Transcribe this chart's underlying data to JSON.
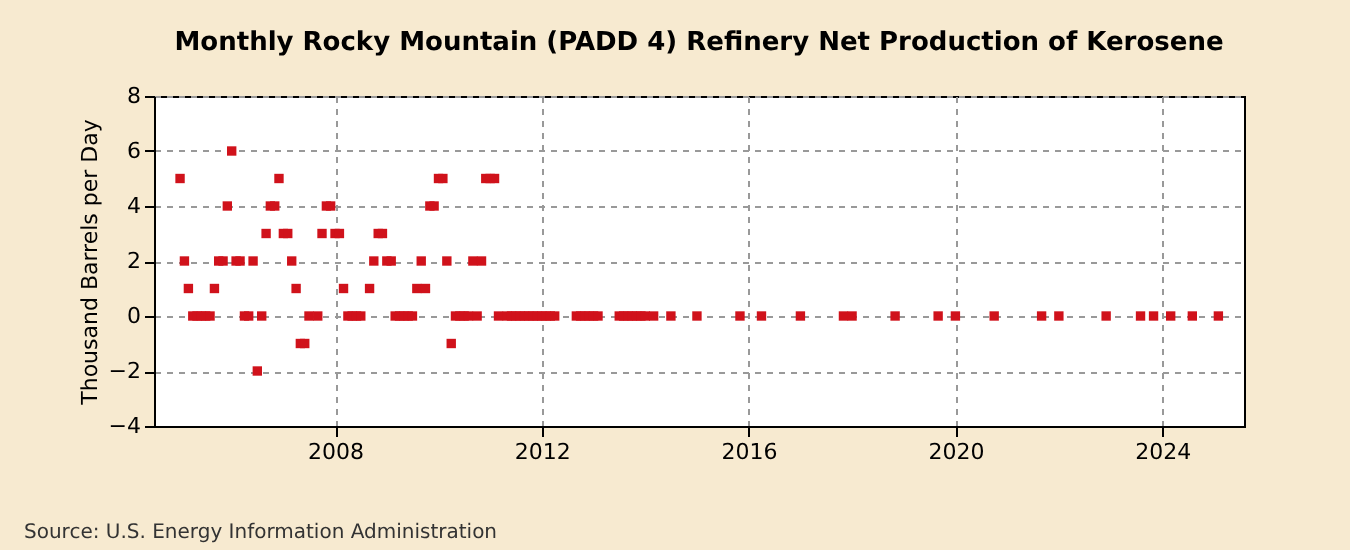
{
  "chart_data": {
    "type": "scatter",
    "title": "Monthly Rocky Mountain (PADD 4) Refinery Net Production of Kerosene",
    "ylabel": "Thousand Barrels per Day",
    "x": [
      "2005-01",
      "2005-02",
      "2005-03",
      "2005-04",
      "2005-05",
      "2005-06",
      "2005-07",
      "2005-08",
      "2005-09",
      "2005-10",
      "2005-11",
      "2005-12",
      "2006-01",
      "2006-02",
      "2006-03",
      "2006-04",
      "2006-05",
      "2006-06",
      "2006-07",
      "2006-08",
      "2006-09",
      "2006-10",
      "2006-11",
      "2006-12",
      "2007-01",
      "2007-02",
      "2007-03",
      "2007-04",
      "2007-05",
      "2007-06",
      "2007-07",
      "2007-09",
      "2007-10",
      "2007-11",
      "2007-12",
      "2008-01",
      "2008-02",
      "2008-03",
      "2008-04",
      "2008-05",
      "2008-06",
      "2008-07",
      "2008-09",
      "2008-10",
      "2008-11",
      "2008-12",
      "2009-01",
      "2009-02",
      "2009-03",
      "2009-04",
      "2009-05",
      "2009-06",
      "2009-07",
      "2009-08",
      "2009-09",
      "2009-10",
      "2009-11",
      "2009-12",
      "2010-01",
      "2010-02",
      "2010-03",
      "2010-04",
      "2010-05",
      "2010-06",
      "2010-07",
      "2010-08",
      "2010-09",
      "2010-10",
      "2010-11",
      "2010-12",
      "2011-01",
      "2011-02",
      "2011-03",
      "2011-05",
      "2011-06",
      "2011-07",
      "2011-08",
      "2011-09",
      "2011-10",
      "2011-11",
      "2011-12",
      "2012-01",
      "2012-02",
      "2012-03",
      "2012-04",
      "2012-09",
      "2012-10",
      "2012-11",
      "2012-12",
      "2013-01",
      "2013-02",
      "2013-07",
      "2013-08",
      "2013-09",
      "2013-10",
      "2013-11",
      "2013-12",
      "2014-01",
      "2014-03",
      "2014-07",
      "2015-01",
      "2015-11",
      "2016-04",
      "2017-01",
      "2017-11",
      "2018-01",
      "2018-11",
      "2019-09",
      "2020-01",
      "2020-10",
      "2021-09",
      "2022-01",
      "2022-12",
      "2023-08",
      "2023-11",
      "2024-03",
      "2024-08",
      "2025-02"
    ],
    "series": [
      {
        "color": "#d0121b",
        "values": [
          5,
          2,
          1,
          0,
          0,
          0,
          0,
          0,
          1,
          2,
          2,
          4,
          6,
          2,
          2,
          0,
          0,
          2,
          -2,
          0,
          3,
          4,
          4,
          5,
          3,
          3,
          2,
          1,
          -1,
          -1,
          0,
          0,
          3,
          4,
          4,
          3,
          3,
          1,
          0,
          0,
          0,
          0,
          1,
          2,
          3,
          3,
          2,
          2,
          0,
          0,
          0,
          0,
          0,
          1,
          2,
          1,
          4,
          4,
          5,
          5,
          2,
          -1,
          0,
          0,
          0,
          0,
          2,
          0,
          2,
          5,
          5,
          5,
          0,
          0,
          0,
          0,
          0,
          0,
          0,
          0,
          0,
          0,
          0,
          0,
          0,
          0,
          0,
          0,
          0,
          0,
          0,
          0,
          0,
          0,
          0,
          0,
          0,
          0,
          0,
          0,
          0,
          0,
          0,
          0,
          0,
          0,
          0,
          0,
          0,
          0,
          0,
          0,
          0,
          0,
          0,
          0,
          0,
          0
        ]
      }
    ],
    "xlim": [
      "2004-07",
      "2025-08"
    ],
    "xticks": [
      "2008",
      "2012",
      "2016",
      "2020",
      "2024"
    ],
    "ylim": [
      -4,
      8
    ],
    "yticks": [
      -4,
      -2,
      0,
      2,
      4,
      6,
      8
    ],
    "grid": true,
    "marker": "square",
    "legend": false,
    "annotations": [
      "Source: U.S. Energy Information Administration"
    ]
  }
}
